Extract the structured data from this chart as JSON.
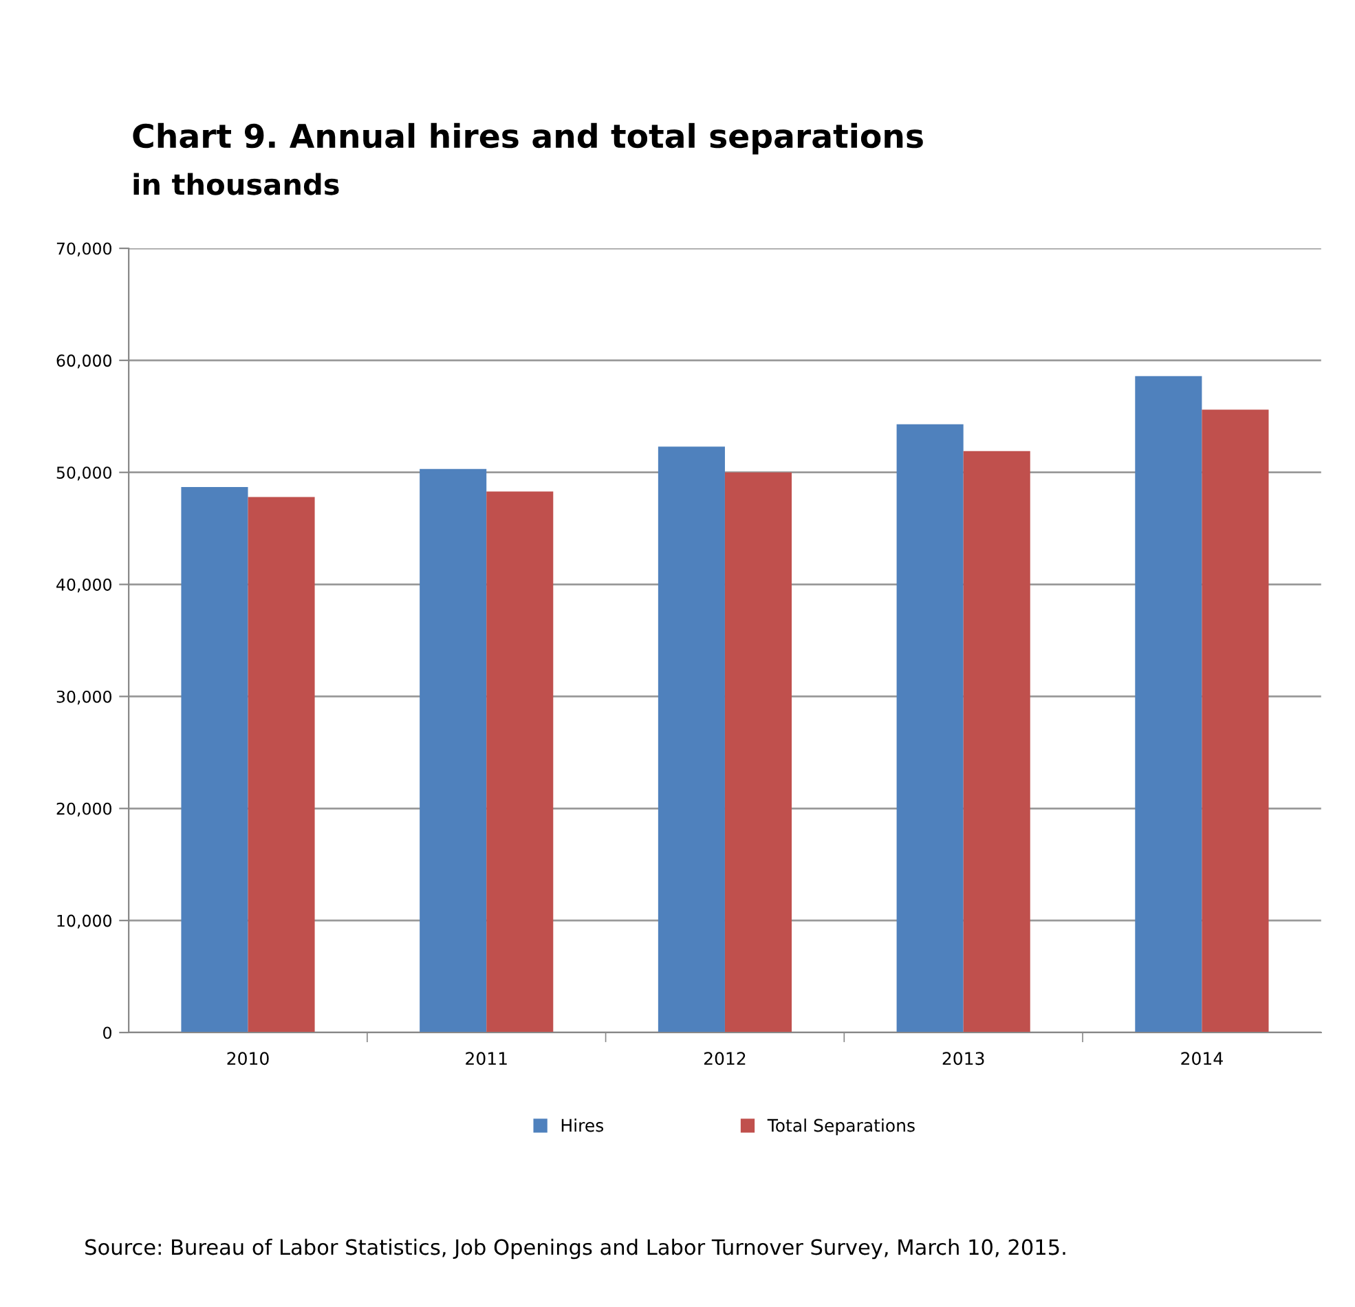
{
  "chart_data": {
    "type": "bar",
    "title": "Chart 9. Annual hires and total separations",
    "subtitle": "in thousands",
    "categories": [
      "2010",
      "2011",
      "2012",
      "2013",
      "2014"
    ],
    "series": [
      {
        "name": "Hires",
        "color": "#4f81bd",
        "values": [
          48700,
          50300,
          52300,
          54300,
          58600
        ]
      },
      {
        "name": "Total Separations",
        "color": "#c0504d",
        "values": [
          47800,
          48300,
          50000,
          51900,
          55600
        ]
      }
    ],
    "ylim": [
      0,
      70000
    ],
    "yticks": [
      {
        "value": 0,
        "label": "0"
      },
      {
        "value": 10000,
        "label": "10,000"
      },
      {
        "value": 20000,
        "label": "20,000"
      },
      {
        "value": 30000,
        "label": "30,000"
      },
      {
        "value": 40000,
        "label": "40,000"
      },
      {
        "value": 50000,
        "label": "50,000"
      },
      {
        "value": 60000,
        "label": "60,000"
      },
      {
        "value": 70000,
        "label": "70,000"
      }
    ],
    "grid": "y",
    "legend": "bottom",
    "annotations": [
      "Source: Bureau of Labor Statistics, Job Openings and Labor Turnover Survey, March 10, 2015."
    ]
  }
}
